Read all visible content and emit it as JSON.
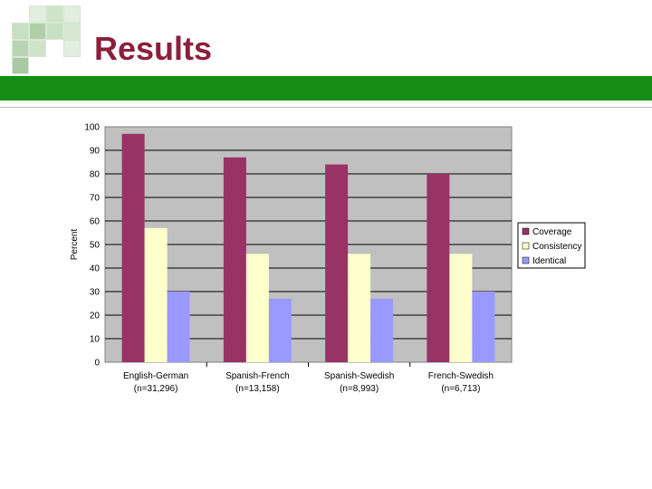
{
  "slide": {
    "title": "Results"
  },
  "colors": {
    "title": "#8b1f3c",
    "band": "#168e16",
    "plot_bg": "#c0c0c0",
    "coverage": "#993366",
    "consistency": "#ffffcc",
    "identical": "#9999ff"
  },
  "chart_data": {
    "type": "bar",
    "categories": [
      "English-German",
      "Spanish-French",
      "Spanish-Swedish",
      "French-Swedish"
    ],
    "category_sublabels": [
      "(n=31,296)",
      "(n=13,158)",
      "(n=8,993)",
      "(n=6,713)"
    ],
    "series": [
      {
        "name": "Coverage",
        "values": [
          97,
          87,
          84,
          80
        ],
        "color": "#993366"
      },
      {
        "name": "Consistency",
        "values": [
          57,
          46,
          46,
          46
        ],
        "color": "#ffffcc"
      },
      {
        "name": "Identical",
        "values": [
          30,
          27,
          27,
          30
        ],
        "color": "#9999ff"
      }
    ],
    "ylabel": "Percent",
    "xlabel": "",
    "ylim": [
      0,
      100
    ],
    "yticks": [
      0,
      10,
      20,
      30,
      40,
      50,
      60,
      70,
      80,
      90,
      100
    ],
    "grid": true,
    "legend": "right"
  }
}
